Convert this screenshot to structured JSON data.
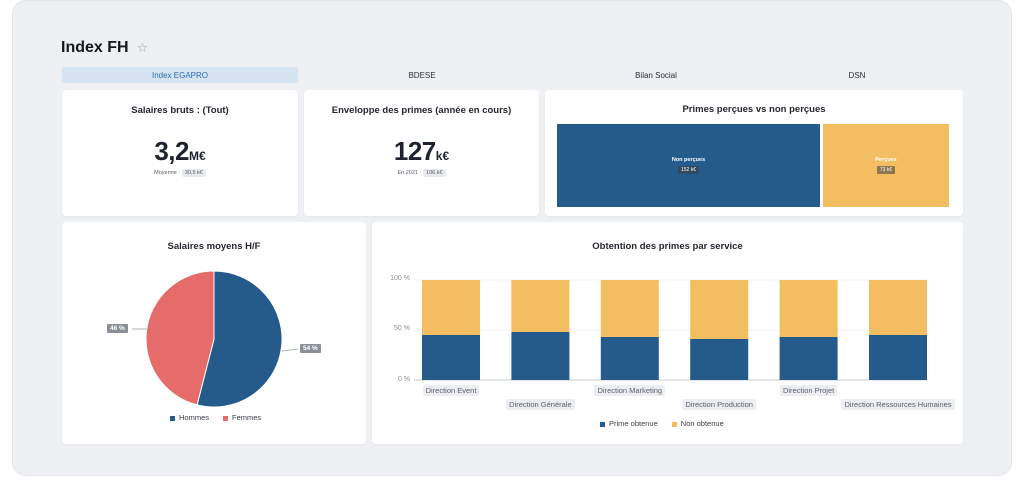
{
  "page": {
    "title": "Index FH",
    "star_icon": "star-icon"
  },
  "tabs": [
    {
      "label": "Index EGAPRO",
      "active": true
    },
    {
      "label": "BDESE",
      "active": false
    },
    {
      "label": "Bilan Social",
      "active": false
    },
    {
      "label": "DSN",
      "active": false
    }
  ],
  "kpis": {
    "salaries": {
      "title": "Salaires bruts : (Tout)",
      "value": "3,2",
      "unit": "M€",
      "sub_label": "Moyenne :",
      "sub_value": "30,5 k€"
    },
    "bonuses": {
      "title": "Enveloppe des primes (année en cours)",
      "value": "127",
      "unit": "k€",
      "sub_label": "En 2021 :",
      "sub_value": "106 k€"
    }
  },
  "treemap": {
    "title": "Primes perçues vs non perçues",
    "blocks": [
      {
        "label": "Non perçues",
        "value": "152 k€",
        "color": "#245b8a",
        "share": 0.676
      },
      {
        "label": "Perçues",
        "value": "73 k€",
        "color": "#f3bd62",
        "share": 0.324
      }
    ]
  },
  "pie": {
    "title": "Salaires moyens H/F",
    "labels": [
      "54 %",
      "46 %"
    ],
    "legend": [
      "Hommes",
      "Femmes"
    ],
    "colors": [
      "#245b8a",
      "#e66b6b"
    ]
  },
  "chart_data": {
    "type": "bar",
    "title": "Obtention des primes par service",
    "categories": [
      "Direction Event",
      "Direction Générale",
      "Direction Marketing",
      "Direction Production",
      "Direction Projet",
      "Direction Ressources Humaines"
    ],
    "series": [
      {
        "name": "Prime obtenue",
        "color": "#245b8a",
        "values": [
          45,
          48,
          43,
          41,
          43,
          45
        ]
      },
      {
        "name": "Non obtenue",
        "color": "#f3bd62",
        "values": [
          55,
          52,
          57,
          59,
          57,
          55
        ]
      }
    ],
    "stacked": true,
    "y_ticks": [
      "100 %",
      "50 %",
      "0 %"
    ],
    "ylim": [
      0,
      100
    ],
    "legend_position": "bottom"
  }
}
